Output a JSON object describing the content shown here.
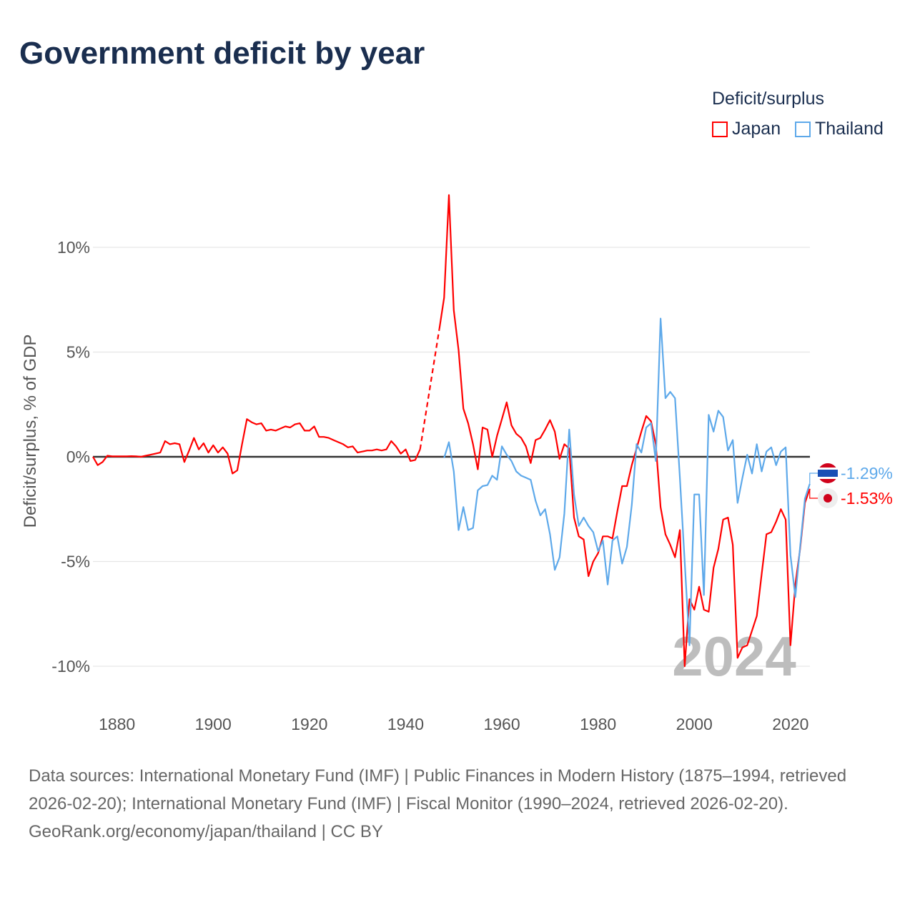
{
  "title": "Government deficit by year",
  "legend": {
    "title": "Deficit/surplus",
    "items": [
      {
        "label": "Japan",
        "color": "#ff0000"
      },
      {
        "label": "Thailand",
        "color": "#5ea9ea"
      }
    ]
  },
  "footer": {
    "sources": "Data sources: International Monetary Fund (IMF) | Public Finances in Modern History (1875–1994, retrieved 2026-02-20); International Monetary Fund (IMF) | Fiscal Monitor (1990–2024, retrieved 2026-02-20).",
    "credit": "GeoRank.org/economy/japan/thailand | CC BY"
  },
  "chart_data": {
    "type": "line",
    "title": "Government deficit by year",
    "ylabel": "Deficit/surplus, % of GDP",
    "xlabel": "",
    "xlim": [
      1875,
      2024
    ],
    "ylim": [
      -11.5,
      13
    ],
    "x_ticks": [
      1880,
      1900,
      1920,
      1940,
      1960,
      1980,
      2000,
      2020
    ],
    "y_ticks": [
      {
        "v": 10,
        "label": "10%"
      },
      {
        "v": 5,
        "label": "5%"
      },
      {
        "v": 0,
        "label": "0%"
      },
      {
        "v": -5,
        "label": "-5%"
      },
      {
        "v": -10,
        "label": "-10%"
      }
    ],
    "grid": true,
    "year_watermark": "2024",
    "series": [
      {
        "name": "Japan",
        "color": "#ff0000",
        "start": 1875,
        "end_label": "-1.53%",
        "gap_dashed": [
          1943,
          1947
        ],
        "values": [
          0,
          -0.4,
          -0.25,
          0.05,
          0.02,
          0.02,
          0.02,
          0.02,
          0.03,
          0.02,
          0,
          0.05,
          0.1,
          0.15,
          0.2,
          0.75,
          0.6,
          0.65,
          0.6,
          -0.25,
          0.3,
          0.9,
          0.35,
          0.65,
          0.2,
          0.55,
          0.2,
          0.45,
          0.15,
          -0.8,
          -0.65,
          0.6,
          1.8,
          1.65,
          1.55,
          1.6,
          1.25,
          1.3,
          1.25,
          1.35,
          1.45,
          1.4,
          1.55,
          1.6,
          1.25,
          1.25,
          1.45,
          0.95,
          0.95,
          0.9,
          0.8,
          0.7,
          0.6,
          0.45,
          0.5,
          0.2,
          0.25,
          0.3,
          0.3,
          0.35,
          0.3,
          0.35,
          0.75,
          0.5,
          0.15,
          0.35,
          -0.2,
          -0.15,
          0.35,
          null,
          null,
          null,
          6.1,
          7.6,
          12.5,
          7.0,
          5.1,
          2.3,
          1.6,
          0.6,
          -0.6,
          1.4,
          1.3,
          0,
          1.0,
          1.8,
          2.6,
          1.5,
          1.1,
          0.9,
          0.5,
          -0.3,
          0.8,
          0.9,
          1.3,
          1.75,
          1.2,
          -0.1,
          0.6,
          0.4,
          -2.9,
          -3.8,
          -3.95,
          -5.7,
          -5.0,
          -4.6,
          -3.8,
          -3.8,
          -3.9,
          -2.6,
          -1.4,
          -1.4,
          -0.4,
          0.4,
          1.2,
          1.95,
          1.7,
          0.6,
          -2.4,
          -3.7,
          -4.2,
          -4.8,
          -3.5,
          -10.0,
          -6.8,
          -7.3,
          -6.2,
          -7.3,
          -7.4,
          -5.3,
          -4.4,
          -3.0,
          -2.9,
          -4.2,
          -9.6,
          -9.1,
          -9.0,
          -8.3,
          -7.6,
          -5.6,
          -3.7,
          -3.6,
          -3.1,
          -2.5,
          -3.0,
          -9.0,
          -6.1,
          -4.4,
          -2.2,
          -1.53
        ]
      },
      {
        "name": "Thailand",
        "color": "#5ea9ea",
        "start": 1948,
        "end_label": "-1.29%",
        "values": [
          -0.05,
          0.7,
          -0.7,
          -3.5,
          -2.4,
          -3.5,
          -3.4,
          -1.6,
          -1.4,
          -1.35,
          -0.9,
          -1.1,
          0.5,
          0.1,
          -0.2,
          -0.7,
          -0.9,
          -1.0,
          -1.1,
          -2.1,
          -2.8,
          -2.5,
          -3.7,
          -5.4,
          -4.8,
          -2.7,
          1.3,
          -1.8,
          -3.3,
          -2.9,
          -3.3,
          -3.6,
          -4.5,
          -4.0,
          -6.1,
          -4.0,
          -3.8,
          -5.1,
          -4.3,
          -2.3,
          0.6,
          0.2,
          1.4,
          1.6,
          -0.2,
          6.6,
          2.8,
          3.1,
          2.8,
          -1.0,
          -5.0,
          -9.0,
          -1.8,
          -1.8,
          -6.6,
          2.0,
          1.2,
          2.2,
          1.9,
          0.3,
          0.8,
          -2.2,
          -1.0,
          0.1,
          -0.8,
          0.6,
          -0.7,
          0.25,
          0.45,
          -0.4,
          0.25,
          0.45,
          -4.7,
          -6.7,
          -4.3,
          -2.0,
          -1.29
        ]
      }
    ]
  }
}
